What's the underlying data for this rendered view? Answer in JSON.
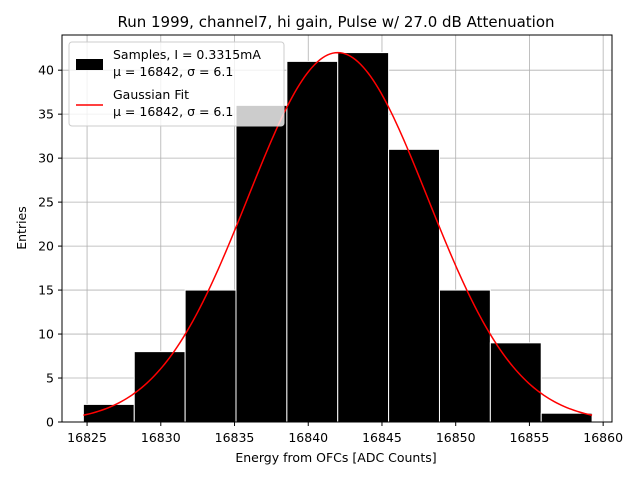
{
  "chart_data": {
    "type": "bar",
    "title": "Run 1999, channel7, hi gain, Pulse w/ 27.0 dB Attenuation",
    "xlabel": "Energy from OFCs [ADC Counts]",
    "ylabel": "Entries",
    "xlim": [
      16823.3,
      16860.6
    ],
    "ylim": [
      0,
      44
    ],
    "grid": true,
    "legend_position": "upper-left",
    "bin_edges": [
      16824.75,
      16828.2,
      16831.65,
      16835.1,
      16838.55,
      16842.0,
      16845.45,
      16848.9,
      16852.35,
      16855.8,
      16859.25
    ],
    "values": [
      2,
      8,
      15,
      36,
      41,
      42,
      31,
      15,
      9,
      1
    ],
    "x_ticks": [
      16825,
      16830,
      16835,
      16840,
      16845,
      16850,
      16855,
      16860
    ],
    "y_ticks": [
      0,
      5,
      10,
      15,
      20,
      25,
      30,
      35,
      40
    ],
    "series": [
      {
        "name": "Samples, I = 0.3315mA",
        "stats": "μ = 16842, σ = 6.1",
        "kind": "histogram",
        "color": "#000000"
      },
      {
        "name": "Gaussian Fit",
        "stats": "μ = 16842, σ = 6.1",
        "kind": "line",
        "color": "#ff0000",
        "mu": 16842,
        "sigma": 6.1,
        "amplitude": 42,
        "x_range": [
          16824.75,
          16859.25
        ]
      }
    ]
  }
}
